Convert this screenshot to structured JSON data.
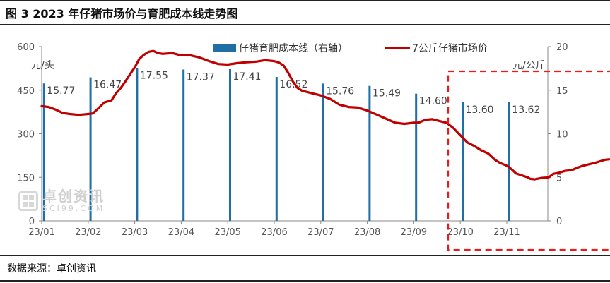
{
  "figure": {
    "title": "图 3 2023 年仔猪市场价与育肥成本线走势图",
    "source": "数据来源：卓创资讯",
    "watermark": {
      "name": "卓创资讯",
      "site": "SCI99.COM"
    }
  },
  "chart_data": {
    "type": "bar+line",
    "left_axis": {
      "unit_label": "元/头",
      "min": 0,
      "max": 600,
      "ticks": [
        0,
        150,
        300,
        450,
        600
      ]
    },
    "right_axis": {
      "unit_label": "元/公斤",
      "min": 0,
      "max": 20,
      "ticks": [
        0,
        5,
        10,
        15,
        20
      ]
    },
    "x_axis": {
      "ticks": [
        "23/01",
        "23/02",
        "23/03",
        "23/04",
        "23/05",
        "23/06",
        "23/07",
        "23/08",
        "23/09",
        "23/10",
        "23/11"
      ]
    },
    "legend": {
      "placement": "top",
      "bar_label": "仔猪育肥成本线（右轴）",
      "line_label": "7公斤仔猪市场价"
    },
    "colors": {
      "bars": "#1f6ea4",
      "line": "#c00000",
      "highlight": "#e81c1c",
      "axis": "#888888"
    },
    "bar_series": {
      "axis": "right",
      "points": [
        {
          "month": 0.05,
          "value": 15.77,
          "label": "15.77"
        },
        {
          "month": 1.05,
          "value": 16.47,
          "label": "16.47"
        },
        {
          "month": 2.05,
          "value": 17.55,
          "label": "17.55"
        },
        {
          "month": 3.05,
          "value": 17.37,
          "label": "17.37"
        },
        {
          "month": 4.05,
          "value": 17.41,
          "label": "17.41"
        },
        {
          "month": 5.05,
          "value": 16.52,
          "label": "16.52"
        },
        {
          "month": 6.05,
          "value": 15.76,
          "label": "15.76"
        },
        {
          "month": 7.05,
          "value": 15.49,
          "label": "15.49"
        },
        {
          "month": 8.05,
          "value": 14.6,
          "label": "14.60"
        },
        {
          "month": 9.05,
          "value": 13.6,
          "label": "13.60"
        },
        {
          "month": 10.05,
          "value": 13.62,
          "label": "13.62"
        }
      ]
    },
    "line_series": {
      "axis": "left",
      "points": [
        [
          0.0,
          395
        ],
        [
          0.15,
          392
        ],
        [
          0.3,
          383
        ],
        [
          0.45,
          372
        ],
        [
          0.6,
          368
        ],
        [
          0.8,
          365
        ],
        [
          1.0,
          368
        ],
        [
          1.1,
          370
        ],
        [
          1.2,
          385
        ],
        [
          1.35,
          408
        ],
        [
          1.5,
          415
        ],
        [
          1.6,
          440
        ],
        [
          1.7,
          458
        ],
        [
          1.8,
          480
        ],
        [
          1.9,
          505
        ],
        [
          2.0,
          528
        ],
        [
          2.1,
          558
        ],
        [
          2.2,
          572
        ],
        [
          2.3,
          582
        ],
        [
          2.4,
          585
        ],
        [
          2.5,
          578
        ],
        [
          2.6,
          575
        ],
        [
          2.8,
          578
        ],
        [
          3.0,
          570
        ],
        [
          3.2,
          570
        ],
        [
          3.4,
          562
        ],
        [
          3.6,
          550
        ],
        [
          3.8,
          540
        ],
        [
          4.0,
          538
        ],
        [
          4.2,
          543
        ],
        [
          4.4,
          546
        ],
        [
          4.6,
          548
        ],
        [
          4.8,
          553
        ],
        [
          5.0,
          550
        ],
        [
          5.1,
          545
        ],
        [
          5.2,
          535
        ],
        [
          5.3,
          510
        ],
        [
          5.4,
          480
        ],
        [
          5.5,
          458
        ],
        [
          5.6,
          448
        ],
        [
          5.8,
          440
        ],
        [
          6.0,
          432
        ],
        [
          6.2,
          420
        ],
        [
          6.4,
          400
        ],
        [
          6.6,
          392
        ],
        [
          6.8,
          390
        ],
        [
          7.0,
          380
        ],
        [
          7.2,
          366
        ],
        [
          7.4,
          352
        ],
        [
          7.6,
          338
        ],
        [
          7.8,
          334
        ],
        [
          8.0,
          338
        ],
        [
          8.1,
          338
        ],
        [
          8.25,
          348
        ],
        [
          8.4,
          350
        ],
        [
          8.55,
          344
        ],
        [
          8.7,
          338
        ],
        [
          8.85,
          320
        ],
        [
          9.0,
          295
        ],
        [
          9.15,
          270
        ],
        [
          9.3,
          258
        ],
        [
          9.45,
          243
        ],
        [
          9.6,
          232
        ],
        [
          9.75,
          210
        ],
        [
          9.85,
          200
        ],
        [
          10.0,
          190
        ],
        [
          10.1,
          178
        ],
        [
          10.2,
          163
        ],
        [
          10.3,
          158
        ],
        [
          10.45,
          150
        ],
        [
          10.5,
          145
        ],
        [
          10.6,
          143
        ],
        [
          10.75,
          148
        ],
        [
          10.9,
          150
        ],
        [
          11.0,
          162
        ],
        [
          11.1,
          165
        ],
        [
          11.25,
          172
        ],
        [
          11.4,
          175
        ],
        [
          11.5,
          182
        ],
        [
          11.6,
          188
        ],
        [
          11.75,
          194
        ],
        [
          11.9,
          200
        ],
        [
          12.0,
          205
        ],
        [
          12.1,
          210
        ],
        [
          12.2,
          212
        ]
      ]
    },
    "highlight_region": {
      "from_month": 8.8,
      "to_month": 12.3,
      "style": "dashed"
    }
  }
}
